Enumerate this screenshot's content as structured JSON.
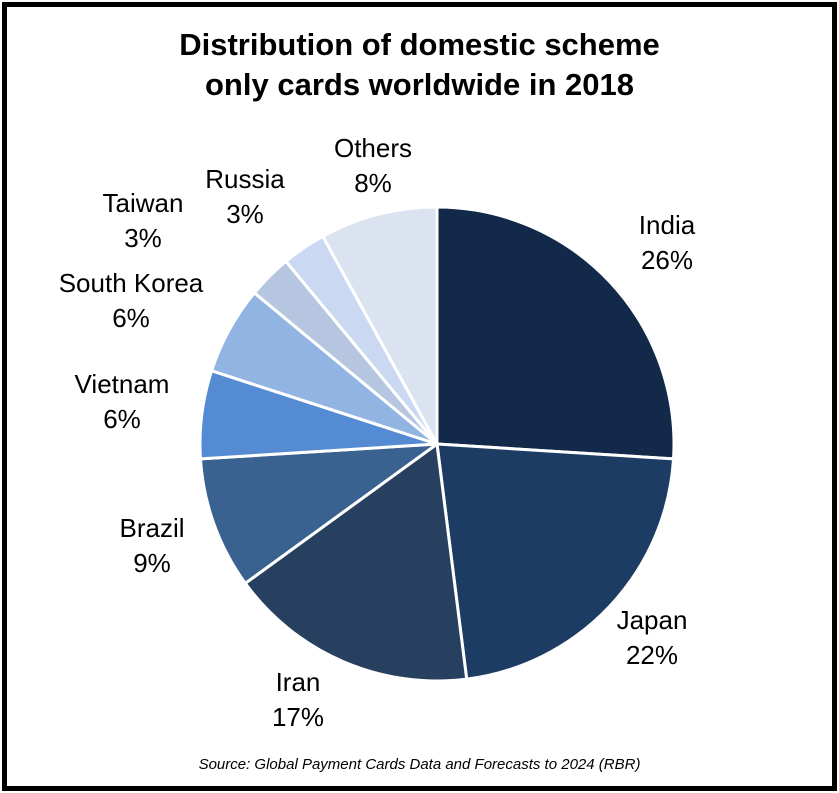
{
  "title_lines": [
    "Distribution of domestic scheme",
    "only cards worldwide in 2018"
  ],
  "source": "Source: Global Payment Cards Data and Forecasts to 2024 (RBR)",
  "chart_data": {
    "type": "pie",
    "title": "Distribution of domestic scheme only cards worldwide in 2018",
    "start_angle_deg": 0,
    "direction": "clockwise",
    "legend": "none (direct labels around pie)",
    "divider_color": "#ffffff",
    "label_color": "#000000",
    "background": "#ffffff",
    "border_color": "#000000",
    "slices": [
      {
        "label": "India",
        "value": 26,
        "pct": "26%",
        "color": "#13294a"
      },
      {
        "label": "Japan",
        "value": 22,
        "pct": "22%",
        "color": "#1c3c63"
      },
      {
        "label": "Iran",
        "value": 17,
        "pct": "17%",
        "color": "#27405f"
      },
      {
        "label": "Brazil",
        "value": 9,
        "pct": "9%",
        "color": "#3a6291"
      },
      {
        "label": "Vietnam",
        "value": 6,
        "pct": "6%",
        "color": "#548bd2"
      },
      {
        "label": "South Korea",
        "value": 6,
        "pct": "6%",
        "color": "#92b4e3"
      },
      {
        "label": "Taiwan",
        "value": 3,
        "pct": "3%",
        "color": "#b6c6e1"
      },
      {
        "label": "Russia",
        "value": 3,
        "pct": "3%",
        "color": "#cad9f1"
      },
      {
        "label": "Others",
        "value": 8,
        "pct": "8%",
        "color": "#dbe3f0"
      }
    ]
  }
}
